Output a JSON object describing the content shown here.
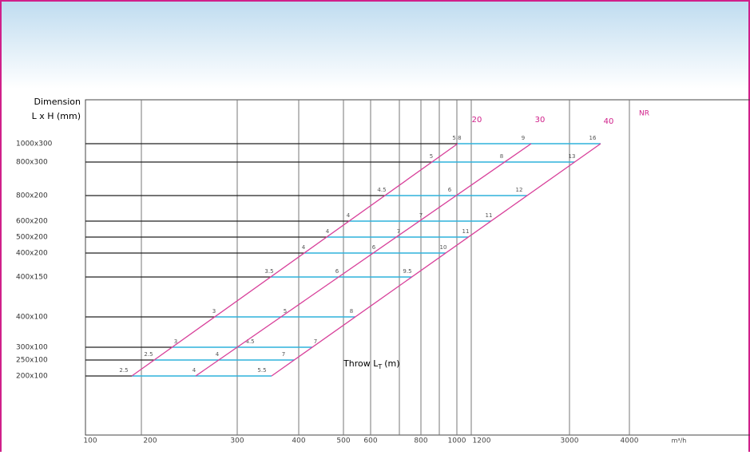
{
  "header": {
    "dimension_label": "Dimension",
    "unit_label": "L x H (mm)"
  },
  "rows": [
    {
      "label": "1000x300",
      "values": [
        "5.8",
        "9",
        "16"
      ]
    },
    {
      "label": "800x300",
      "values": [
        "5",
        "8",
        "13"
      ]
    },
    {
      "label": "800x200",
      "values": [
        "4.5",
        "6",
        "12"
      ]
    },
    {
      "label": "600x200",
      "values": [
        "4",
        "7",
        "11"
      ]
    },
    {
      "label": "500x200",
      "values": [
        "4",
        "7",
        "11"
      ]
    },
    {
      "label": "400x200",
      "values": [
        "4",
        "6",
        "10"
      ]
    },
    {
      "label": "400x150",
      "values": [
        "3.5",
        "6",
        "9.5"
      ]
    },
    {
      "label": "400x100",
      "values": [
        "3",
        "5",
        "8"
      ]
    },
    {
      "label": "300x100",
      "values": [
        "3",
        "4.5",
        "7"
      ]
    },
    {
      "label": "250x100",
      "values": [
        "2.5",
        "4",
        "7"
      ]
    },
    {
      "label": "200x100",
      "values": [
        "2.5",
        "4",
        "5.5"
      ]
    }
  ],
  "curves": [
    "20",
    "30",
    "40",
    "NR"
  ],
  "throw_label": {
    "text": "Throw L",
    "sub": "T",
    "unit": "(m)"
  },
  "x_axis": {
    "labels": [
      "100",
      "200",
      "300",
      "400",
      "500",
      "600",
      "800",
      "1000",
      "1200",
      "3000",
      "4000"
    ],
    "unit": "m³/h"
  }
}
